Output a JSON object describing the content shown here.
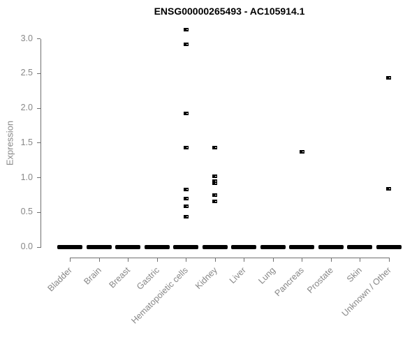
{
  "chart_data": {
    "type": "scatter",
    "title": "ENSG00000265493 - AC105914.1",
    "xlabel": "",
    "ylabel": "Expression",
    "ylim": [
      0,
      3.15
    ],
    "yticks": [
      0,
      0.5,
      1,
      1.5,
      2,
      2.5,
      3
    ],
    "ytick_labels": [
      "0.0",
      "0.5",
      "1.0",
      "1.5",
      "2.0",
      "2.5",
      "3.0"
    ],
    "grid": false,
    "legend": "none",
    "marker": "small filled black square",
    "zero_mass_note": "every category shows a thick black dash at y=0 (many overlapping samples with zero expression)",
    "categories": [
      "Bladder",
      "Brain",
      "Breast",
      "Gastric",
      "Hematopoietic cells",
      "Kidney",
      "Liver",
      "Lung",
      "Pancreas",
      "Prostate",
      "Skin",
      "Unknown / Other"
    ],
    "series": [
      {
        "category": "Bladder",
        "zero_dash": true,
        "points": []
      },
      {
        "category": "Brain",
        "zero_dash": true,
        "points": []
      },
      {
        "category": "Breast",
        "zero_dash": true,
        "points": []
      },
      {
        "category": "Gastric",
        "zero_dash": true,
        "points": []
      },
      {
        "category": "Hematopoietic cells",
        "zero_dash": true,
        "points": [
          3.13,
          2.92,
          1.92,
          1.43,
          0.83,
          0.7,
          0.59,
          0.44
        ]
      },
      {
        "category": "Kidney",
        "zero_dash": true,
        "points": [
          1.43,
          1.02,
          0.95,
          0.92,
          0.75,
          0.66
        ]
      },
      {
        "category": "Liver",
        "zero_dash": true,
        "points": []
      },
      {
        "category": "Lung",
        "zero_dash": true,
        "points": []
      },
      {
        "category": "Pancreas",
        "zero_dash": true,
        "points": [
          1.37
        ]
      },
      {
        "category": "Prostate",
        "zero_dash": true,
        "points": []
      },
      {
        "category": "Skin",
        "zero_dash": true,
        "points": []
      },
      {
        "category": "Unknown / Other",
        "zero_dash": true,
        "points": [
          2.44,
          0.84
        ]
      }
    ]
  }
}
